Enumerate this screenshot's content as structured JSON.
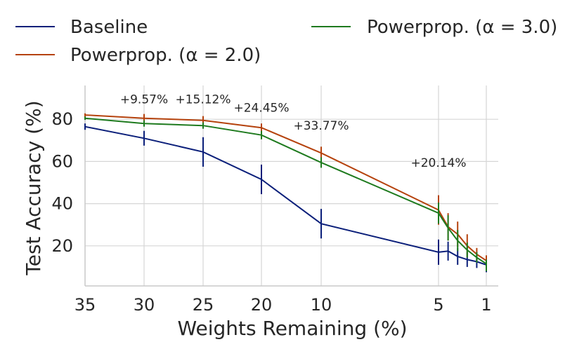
{
  "chart_data": {
    "type": "line",
    "title": "",
    "xlabel": "Weights Remaining (%)",
    "ylabel": "Test Accuracy (%)",
    "x_tick_labels": [
      "35",
      "30",
      "25",
      "20",
      "10",
      "5",
      "1"
    ],
    "y_ticks": [
      20,
      40,
      60,
      80
    ],
    "y_tick_labels": [
      "20",
      "40",
      "60",
      "80"
    ],
    "ylim": [
      1,
      96
    ],
    "grid": true,
    "legend_position": "top",
    "series": [
      {
        "name": "Baseline",
        "color": "#0b1f7a",
        "points": [
          {
            "pos": 0.0,
            "y": 76.5,
            "err": 1.5
          },
          {
            "pos": 1.0,
            "y": 71.0,
            "err": 3.5
          },
          {
            "pos": 2.0,
            "y": 64.5,
            "err": 7.0
          },
          {
            "pos": 3.0,
            "y": 51.5,
            "err": 7.0
          },
          {
            "pos": 4.0,
            "y": 30.5,
            "err": 7.0
          },
          {
            "pos": 5.0,
            "y": 17.0,
            "err": 6.0
          },
          {
            "pos": 5.2,
            "y": 17.5,
            "err": 4.5
          },
          {
            "pos": 5.4,
            "y": 15.0,
            "err": 4.0
          },
          {
            "pos": 5.6,
            "y": 13.5,
            "err": 3.5
          },
          {
            "pos": 5.8,
            "y": 12.5,
            "err": 3.0
          },
          {
            "pos": 6.0,
            "y": 11.0,
            "err": 2.0
          },
          {
            "pos": 6.2,
            "y": 10.0,
            "err": 2.0
          },
          {
            "pos": 6.4,
            "y": 9.5,
            "err": 2.0
          },
          {
            "pos": 6.6,
            "y": 9.5,
            "err": 1.5
          },
          {
            "pos": 6.8,
            "y": 10.5,
            "err": 1.5
          }
        ]
      },
      {
        "name": "Powerprop. (α = 2.0)",
        "color": "#b5420d",
        "points": [
          {
            "pos": 0.0,
            "y": 82.0,
            "err": 0.8
          },
          {
            "pos": 1.0,
            "y": 80.5,
            "err": 2.0
          },
          {
            "pos": 2.0,
            "y": 79.5,
            "err": 2.0
          },
          {
            "pos": 3.0,
            "y": 76.0,
            "err": 2.0
          },
          {
            "pos": 4.0,
            "y": 64.0,
            "err": 3.0
          },
          {
            "pos": 5.0,
            "y": 37.0,
            "err": 7.0
          },
          {
            "pos": 5.2,
            "y": 29.0,
            "err": 6.5
          },
          {
            "pos": 5.4,
            "y": 25.5,
            "err": 6.0
          },
          {
            "pos": 5.6,
            "y": 20.0,
            "err": 5.5
          },
          {
            "pos": 5.8,
            "y": 16.0,
            "err": 3.0
          },
          {
            "pos": 6.0,
            "y": 13.0,
            "err": 2.5
          },
          {
            "pos": 6.2,
            "y": 11.5,
            "err": 2.5
          },
          {
            "pos": 6.4,
            "y": 11.0,
            "err": 2.0
          },
          {
            "pos": 6.6,
            "y": 10.5,
            "err": 1.5
          },
          {
            "pos": 6.8,
            "y": 10.0,
            "err": 1.5
          }
        ]
      },
      {
        "name": "Powerprop. (α = 3.0)",
        "color": "#1e7a1e",
        "points": [
          {
            "pos": 0.0,
            "y": 80.5,
            "err": 0.8
          },
          {
            "pos": 1.0,
            "y": 78.0,
            "err": 1.5
          },
          {
            "pos": 2.0,
            "y": 77.0,
            "err": 1.5
          },
          {
            "pos": 3.0,
            "y": 72.5,
            "err": 2.0
          },
          {
            "pos": 4.0,
            "y": 59.5,
            "err": 2.5
          },
          {
            "pos": 5.0,
            "y": 35.5,
            "err": 5.0
          },
          {
            "pos": 5.2,
            "y": 28.5,
            "err": 6.0
          },
          {
            "pos": 5.4,
            "y": 22.5,
            "err": 5.0
          },
          {
            "pos": 5.6,
            "y": 18.0,
            "err": 3.5
          },
          {
            "pos": 5.8,
            "y": 14.5,
            "err": 2.5
          },
          {
            "pos": 6.0,
            "y": 11.5,
            "err": 2.0
          },
          {
            "pos": 6.2,
            "y": 10.5,
            "err": 2.0
          },
          {
            "pos": 6.4,
            "y": 10.0,
            "err": 1.5
          },
          {
            "pos": 6.6,
            "y": 9.5,
            "err": 1.5
          },
          {
            "pos": 6.8,
            "y": 9.5,
            "err": 1.5
          }
        ]
      }
    ],
    "annotations": [
      {
        "text": "+9.57%",
        "pos": 1.0,
        "y": 87.5
      },
      {
        "text": "+15.12%",
        "pos": 2.0,
        "y": 87.5
      },
      {
        "text": "+24.45%",
        "pos": 3.0,
        "y": 83.5
      },
      {
        "text": "+33.77%",
        "pos": 4.0,
        "y": 75.0
      },
      {
        "text": "+20.14%",
        "pos": 5.0,
        "y": 57.5
      }
    ]
  }
}
